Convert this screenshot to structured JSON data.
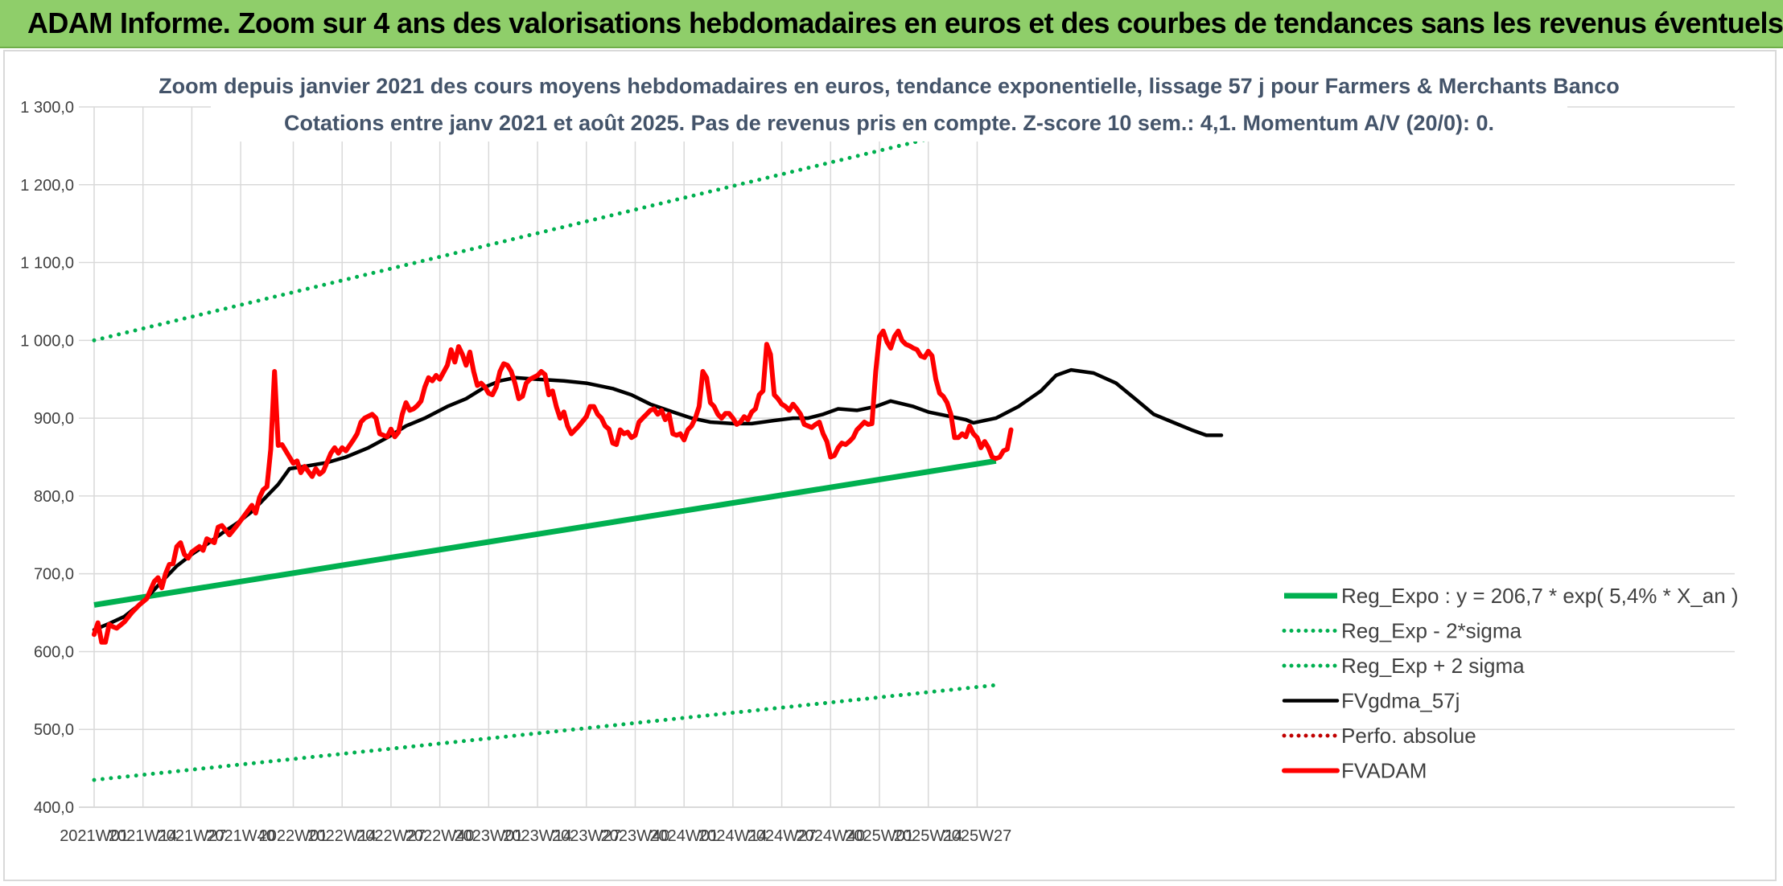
{
  "banner": {
    "title": "ADAM Informe. Zoom sur 4 ans des valorisations hebdomadaires en euros et des courbes de tendances sans les revenus éventuels"
  },
  "colors": {
    "banner_bg": "#8fce6a",
    "trend": "#00b050",
    "price": "#ff0000",
    "smooth": "#000000",
    "perf": "#c00000"
  },
  "chart_data": {
    "type": "line",
    "title": "Zoom depuis janvier 2021 des cours moyens hebdomadaires en euros, tendance exponentielle, lissage 57 j pour Farmers & Merchants Banco",
    "subtitle": "Cotations entre janv 2021 et août 2025. Pas de revenus pris en compte. Z-score 10 sem.: 4,1. Momentum A/V (20/0): 0.",
    "xlabel": "",
    "ylabel": "",
    "ylim": [
      400,
      1300
    ],
    "grid": true,
    "legend_position": "bottom-right",
    "x_ticks": [
      "2021W01",
      "2021W14",
      "2021W27",
      "2021W40",
      "2022W01",
      "2022W14",
      "2022W27",
      "2022W40",
      "2023W01",
      "2023W14",
      "2023W27",
      "2023W40",
      "2024W01",
      "2024W14",
      "2024W27",
      "2024W40",
      "2025W01",
      "2025W14",
      "2025W27"
    ],
    "y_ticks": [
      "400,0",
      "500,0",
      "600,0",
      "700,0",
      "800,0",
      "900,0",
      "1 000,0",
      "1 100,0",
      "1 200,0",
      "1 300,0"
    ],
    "n_weeks": 241,
    "series": [
      {
        "name": "Reg_Expo : y = 206,7 * exp( 5,4% *  X_an )",
        "style": "solid-thick",
        "color": "#00b050",
        "points": [
          [
            0,
            660
          ],
          [
            240,
            845
          ]
        ]
      },
      {
        "name": "Reg_Exp - 2*sigma",
        "style": "dotted",
        "color": "#00b050",
        "points": [
          [
            0,
            435
          ],
          [
            240,
            557
          ]
        ]
      },
      {
        "name": "Reg_Exp + 2 sigma",
        "style": "dotted",
        "color": "#00b050",
        "points": [
          [
            0,
            1000
          ],
          [
            240,
            1280
          ]
        ]
      },
      {
        "name": "FVgdma_57j",
        "style": "solid",
        "color": "#000000",
        "points": [
          [
            0,
            628
          ],
          [
            4,
            636
          ],
          [
            8,
            645
          ],
          [
            13,
            664
          ],
          [
            18,
            690
          ],
          [
            22,
            710
          ],
          [
            26,
            725
          ],
          [
            30,
            738
          ],
          [
            34,
            752
          ],
          [
            38,
            765
          ],
          [
            42,
            780
          ],
          [
            46,
            800
          ],
          [
            49,
            815
          ],
          [
            52,
            835
          ],
          [
            56,
            838
          ],
          [
            62,
            843
          ],
          [
            67,
            850
          ],
          [
            73,
            862
          ],
          [
            78,
            875
          ],
          [
            83,
            890
          ],
          [
            88,
            900
          ],
          [
            94,
            915
          ],
          [
            99,
            925
          ],
          [
            104,
            940
          ],
          [
            108,
            948
          ],
          [
            112,
            952
          ],
          [
            118,
            950
          ],
          [
            125,
            948
          ],
          [
            131,
            945
          ],
          [
            138,
            938
          ],
          [
            143,
            930
          ],
          [
            148,
            918
          ],
          [
            154,
            908
          ],
          [
            159,
            900
          ],
          [
            164,
            895
          ],
          [
            170,
            893
          ],
          [
            175,
            893
          ],
          [
            181,
            897
          ],
          [
            186,
            900
          ],
          [
            190,
            900
          ],
          [
            194,
            905
          ],
          [
            198,
            912
          ],
          [
            203,
            910
          ],
          [
            208,
            915
          ],
          [
            212,
            922
          ],
          [
            218,
            915
          ],
          [
            222,
            908
          ],
          [
            228,
            902
          ],
          [
            232,
            898
          ],
          [
            234,
            894
          ],
          [
            240,
            900
          ],
          [
            246,
            915
          ],
          [
            252,
            935
          ],
          [
            256,
            955
          ],
          [
            260,
            962
          ],
          [
            266,
            958
          ],
          [
            272,
            945
          ],
          [
            277,
            925
          ],
          [
            282,
            905
          ],
          [
            287,
            895
          ],
          [
            292,
            885
          ],
          [
            296,
            878
          ],
          [
            300,
            878
          ]
        ]
      },
      {
        "name": "Perfo. absolue",
        "style": "dotted",
        "color": "#c00000",
        "points": []
      },
      {
        "name": "FVADAM",
        "style": "solid-thick",
        "color": "#ff0000",
        "points": [
          [
            0,
            622
          ],
          [
            1,
            637
          ],
          [
            2,
            612
          ],
          [
            3,
            612
          ],
          [
            4,
            635
          ],
          [
            5,
            632
          ],
          [
            6,
            630
          ],
          [
            8,
            638
          ],
          [
            10,
            650
          ],
          [
            12,
            660
          ],
          [
            14,
            668
          ],
          [
            16,
            690
          ],
          [
            17,
            695
          ],
          [
            18,
            682
          ],
          [
            19,
            700
          ],
          [
            20,
            712
          ],
          [
            21,
            713
          ],
          [
            22,
            735
          ],
          [
            23,
            740
          ],
          [
            24,
            725
          ],
          [
            25,
            720
          ],
          [
            26,
            728
          ],
          [
            28,
            735
          ],
          [
            29,
            730
          ],
          [
            30,
            745
          ],
          [
            32,
            740
          ],
          [
            33,
            760
          ],
          [
            34,
            762
          ],
          [
            36,
            750
          ],
          [
            38,
            762
          ],
          [
            40,
            775
          ],
          [
            42,
            788
          ],
          [
            43,
            778
          ],
          [
            44,
            798
          ],
          [
            45,
            808
          ],
          [
            46,
            812
          ],
          [
            47,
            860
          ],
          [
            48,
            960
          ],
          [
            49,
            865
          ],
          [
            50,
            866
          ],
          [
            52,
            850
          ],
          [
            53,
            842
          ],
          [
            54,
            845
          ],
          [
            55,
            830
          ],
          [
            56,
            838
          ],
          [
            58,
            825
          ],
          [
            59,
            835
          ],
          [
            60,
            828
          ],
          [
            61,
            832
          ],
          [
            63,
            855
          ],
          [
            64,
            862
          ],
          [
            65,
            855
          ],
          [
            66,
            862
          ],
          [
            67,
            858
          ],
          [
            69,
            872
          ],
          [
            70,
            880
          ],
          [
            71,
            895
          ],
          [
            72,
            900
          ],
          [
            74,
            905
          ],
          [
            75,
            900
          ],
          [
            76,
            880
          ],
          [
            78,
            876
          ],
          [
            79,
            886
          ],
          [
            80,
            876
          ],
          [
            81,
            882
          ],
          [
            82,
            905
          ],
          [
            83,
            920
          ],
          [
            84,
            910
          ],
          [
            85,
            912
          ],
          [
            86,
            916
          ],
          [
            87,
            922
          ],
          [
            88,
            940
          ],
          [
            89,
            952
          ],
          [
            90,
            948
          ],
          [
            91,
            955
          ],
          [
            92,
            950
          ],
          [
            94,
            968
          ],
          [
            95,
            988
          ],
          [
            96,
            972
          ],
          [
            97,
            992
          ],
          [
            98,
            982
          ],
          [
            99,
            968
          ],
          [
            100,
            985
          ],
          [
            101,
            960
          ],
          [
            102,
            942
          ],
          [
            103,
            945
          ],
          [
            104,
            940
          ],
          [
            105,
            932
          ],
          [
            106,
            930
          ],
          [
            107,
            940
          ],
          [
            108,
            960
          ],
          [
            109,
            970
          ],
          [
            110,
            968
          ],
          [
            111,
            960
          ],
          [
            112,
            945
          ],
          [
            113,
            925
          ],
          [
            114,
            928
          ],
          [
            115,
            945
          ],
          [
            116,
            950
          ],
          [
            118,
            955
          ],
          [
            119,
            960
          ],
          [
            120,
            956
          ],
          [
            121,
            930
          ],
          [
            122,
            935
          ],
          [
            123,
            915
          ],
          [
            124,
            900
          ],
          [
            125,
            908
          ],
          [
            126,
            890
          ],
          [
            127,
            880
          ],
          [
            129,
            890
          ],
          [
            131,
            902
          ],
          [
            132,
            915
          ],
          [
            133,
            915
          ],
          [
            134,
            905
          ],
          [
            135,
            900
          ],
          [
            136,
            890
          ],
          [
            137,
            886
          ],
          [
            138,
            868
          ],
          [
            139,
            866
          ],
          [
            140,
            885
          ],
          [
            141,
            880
          ],
          [
            142,
            882
          ],
          [
            143,
            875
          ],
          [
            144,
            878
          ],
          [
            145,
            895
          ],
          [
            146,
            900
          ],
          [
            147,
            905
          ],
          [
            148,
            910
          ],
          [
            149,
            912
          ],
          [
            150,
            905
          ],
          [
            151,
            910
          ],
          [
            152,
            898
          ],
          [
            153,
            905
          ],
          [
            154,
            880
          ],
          [
            155,
            878
          ],
          [
            156,
            880
          ],
          [
            157,
            872
          ],
          [
            158,
            885
          ],
          [
            159,
            890
          ],
          [
            160,
            900
          ],
          [
            161,
            915
          ],
          [
            162,
            960
          ],
          [
            163,
            952
          ],
          [
            164,
            920
          ],
          [
            165,
            915
          ],
          [
            166,
            905
          ],
          [
            167,
            900
          ],
          [
            168,
            906
          ],
          [
            169,
            906
          ],
          [
            170,
            900
          ],
          [
            171,
            892
          ],
          [
            172,
            895
          ],
          [
            173,
            902
          ],
          [
            174,
            898
          ],
          [
            175,
            908
          ],
          [
            176,
            912
          ],
          [
            177,
            930
          ],
          [
            178,
            935
          ],
          [
            179,
            995
          ],
          [
            180,
            982
          ],
          [
            181,
            930
          ],
          [
            182,
            925
          ],
          [
            183,
            918
          ],
          [
            184,
            915
          ],
          [
            185,
            910
          ],
          [
            186,
            918
          ],
          [
            187,
            912
          ],
          [
            188,
            905
          ],
          [
            189,
            892
          ],
          [
            190,
            890
          ],
          [
            191,
            888
          ],
          [
            192,
            892
          ],
          [
            193,
            895
          ],
          [
            194,
            880
          ],
          [
            195,
            870
          ],
          [
            196,
            850
          ],
          [
            197,
            852
          ],
          [
            198,
            862
          ],
          [
            199,
            868
          ],
          [
            200,
            866
          ],
          [
            201,
            870
          ],
          [
            202,
            875
          ],
          [
            203,
            885
          ],
          [
            204,
            890
          ],
          [
            205,
            895
          ],
          [
            206,
            892
          ],
          [
            207,
            893
          ],
          [
            208,
            960
          ],
          [
            209,
            1005
          ],
          [
            210,
            1012
          ],
          [
            211,
            998
          ],
          [
            212,
            990
          ],
          [
            213,
            1005
          ],
          [
            214,
            1012
          ],
          [
            215,
            1000
          ],
          [
            216,
            995
          ],
          [
            217,
            993
          ],
          [
            218,
            990
          ],
          [
            219,
            988
          ],
          [
            220,
            980
          ],
          [
            221,
            978
          ],
          [
            222,
            986
          ],
          [
            223,
            980
          ],
          [
            224,
            950
          ],
          [
            225,
            932
          ],
          [
            226,
            928
          ],
          [
            227,
            920
          ],
          [
            228,
            905
          ],
          [
            229,
            875
          ],
          [
            230,
            875
          ],
          [
            231,
            880
          ],
          [
            232,
            876
          ],
          [
            233,
            890
          ],
          [
            234,
            880
          ],
          [
            235,
            875
          ],
          [
            236,
            862
          ],
          [
            237,
            870
          ],
          [
            238,
            862
          ],
          [
            239,
            850
          ],
          [
            240,
            848
          ],
          [
            241,
            850
          ],
          [
            242,
            858
          ],
          [
            243,
            860
          ],
          [
            244,
            885
          ]
        ]
      }
    ]
  }
}
